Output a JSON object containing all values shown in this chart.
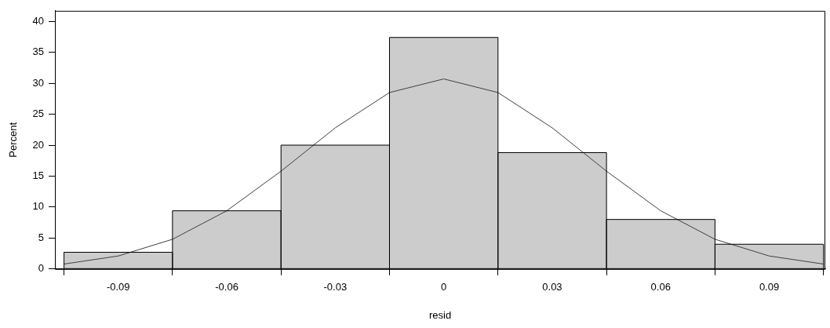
{
  "chart_data": {
    "type": "histogram",
    "xlabel": "resid",
    "ylabel": "Percent",
    "bins": [
      -0.105,
      -0.075,
      -0.045,
      -0.015,
      0.015,
      0.045,
      0.075,
      0.105
    ],
    "values": [
      2.7,
      9.4,
      20.0,
      37.4,
      18.8,
      8.0,
      4.0
    ],
    "color": "#cccccc",
    "series": [
      {
        "type": "line",
        "color": "#404040",
        "x": [
          -0.105,
          -0.09,
          -0.075,
          -0.06,
          -0.045,
          -0.03,
          -0.015,
          0,
          0.015,
          0.03,
          0.045,
          0.06,
          0.075,
          0.09,
          0.105
        ],
        "values": [
          0.8,
          2.1,
          4.8,
          9.4,
          15.8,
          22.8,
          28.5,
          30.7,
          28.5,
          22.8,
          15.8,
          9.4,
          4.8,
          2.1,
          0.8
        ]
      }
    ],
    "xlim": [
      -0.1075,
      0.1055
    ],
    "xticks": [
      {
        "value": -0.09,
        "label": "-0.09"
      },
      {
        "value": -0.06,
        "label": "-0.06"
      },
      {
        "value": -0.03,
        "label": "-0.03"
      },
      0,
      {
        "value": 0.03,
        "label": "0.03"
      },
      {
        "value": 0.06,
        "label": "0.06"
      },
      {
        "value": 0.09,
        "label": "0.09"
      }
    ],
    "ylim": [
      0,
      41.7
    ],
    "yticks": [
      0,
      5,
      10,
      15,
      20,
      25,
      30,
      35,
      40
    ],
    "grid": false,
    "legend": false
  }
}
